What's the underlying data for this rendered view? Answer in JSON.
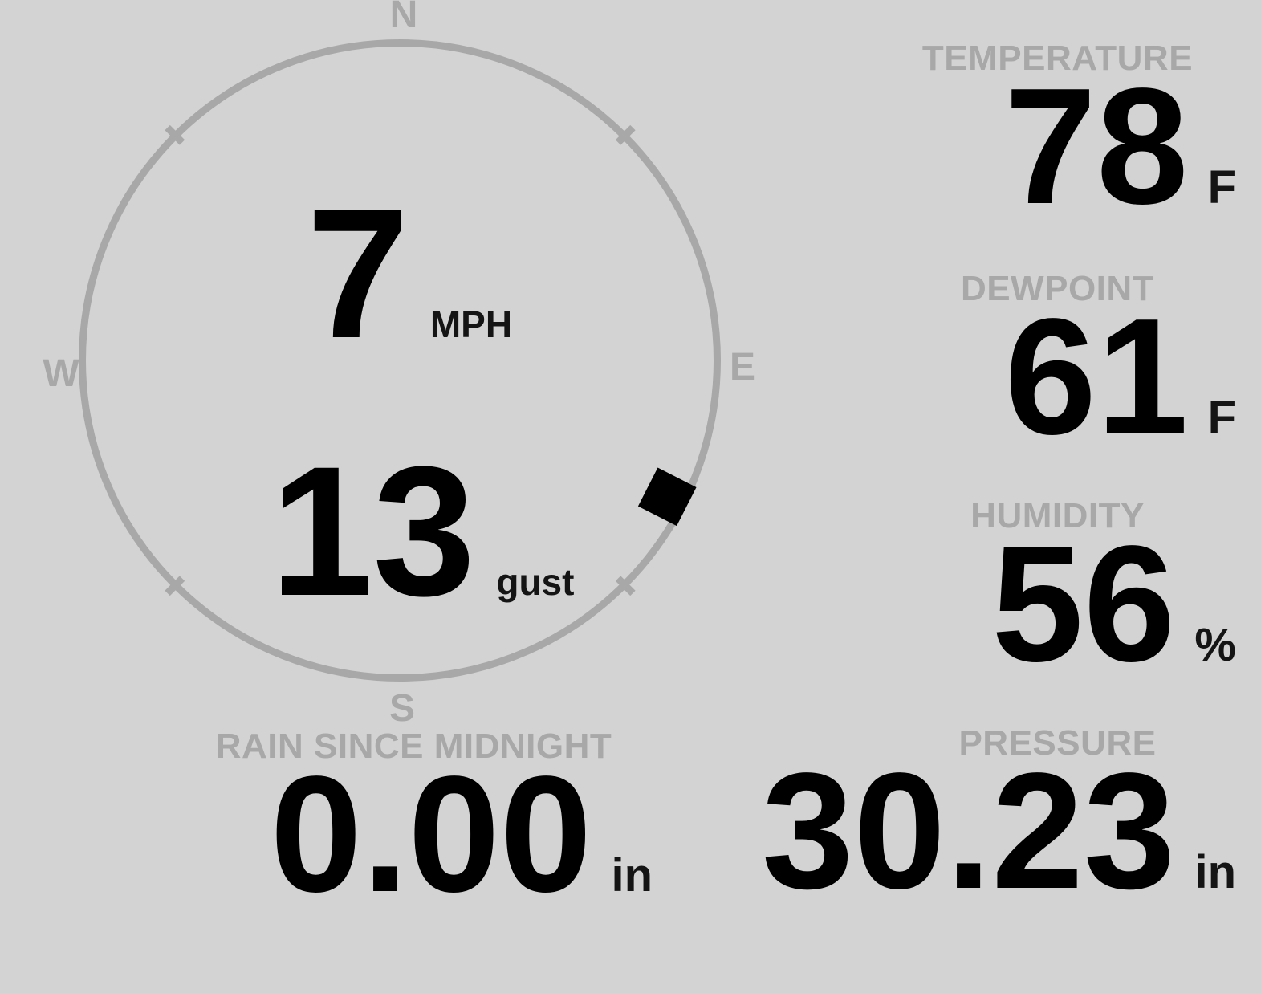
{
  "colors": {
    "background": "#d3d3d3",
    "muted": "#a8a8a8",
    "text": "#000000"
  },
  "compass": {
    "cardinals": {
      "north": "N",
      "east": "E",
      "south": "S",
      "west": "W"
    },
    "wind_speed": {
      "value": "7",
      "unit": "MPH"
    },
    "wind_gust": {
      "value": "13",
      "unit": "gust"
    },
    "wind_direction_degrees": 117
  },
  "stats": [
    {
      "label": "TEMPERATURE",
      "value": "78",
      "unit": "F"
    },
    {
      "label": "DEWPOINT",
      "value": "61",
      "unit": "F"
    },
    {
      "label": "HUMIDITY",
      "value": "56",
      "unit": "%"
    },
    {
      "label": "PRESSURE",
      "value": "30.23",
      "unit": "in"
    }
  ],
  "rain": {
    "label": "RAIN SINCE MIDNIGHT",
    "value": "0.00",
    "unit": "in"
  }
}
